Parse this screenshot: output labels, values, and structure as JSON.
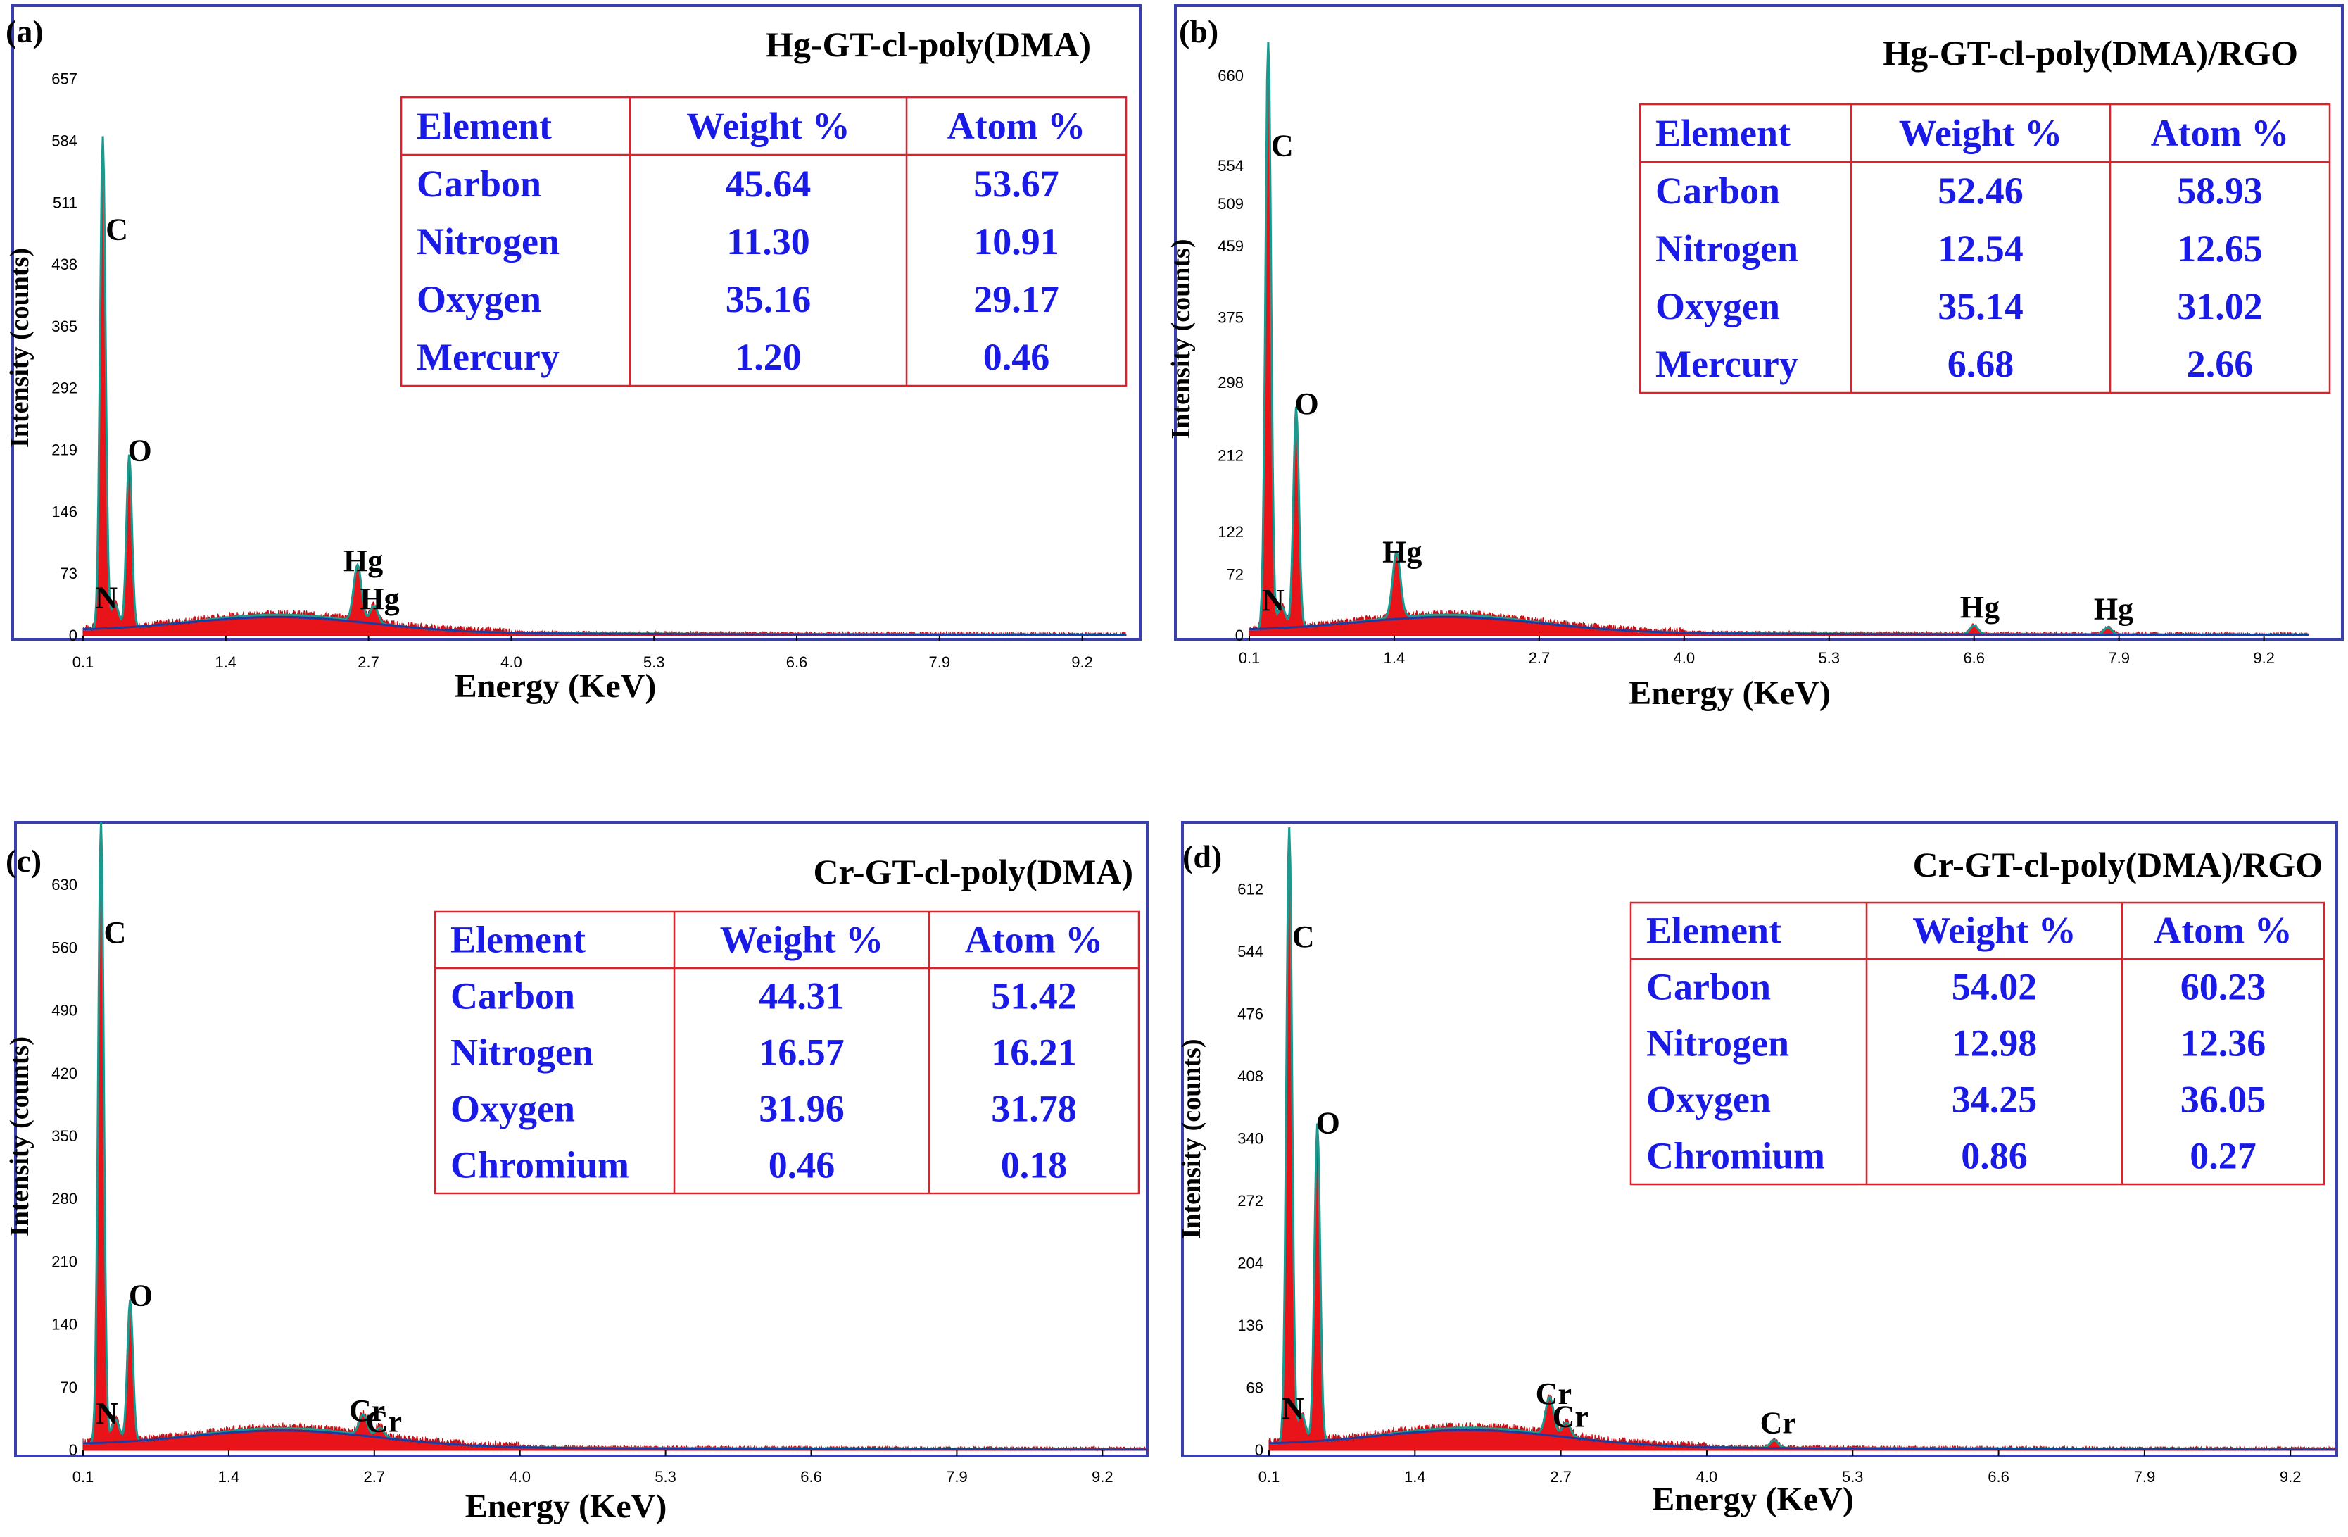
{
  "chart_data": [
    {
      "type": "area",
      "panel": "(a)",
      "title": "Hg-GT-cl-poly(DMA)",
      "xlabel": "Energy (KeV)",
      "ylabel": "Intensity (counts)",
      "xlim": [
        0.1,
        9.6
      ],
      "ylim": [
        0,
        680
      ],
      "xticks": [
        "0.1",
        "1.4",
        "2.7",
        "4.0",
        "5.3",
        "6.6",
        "7.9",
        "9.2"
      ],
      "yticks": [
        "0",
        "73",
        "146",
        "219",
        "292",
        "365",
        "438",
        "511",
        "584",
        "657"
      ],
      "peaks": [
        {
          "label": "C",
          "x": 0.28,
          "y": 570
        },
        {
          "label": "O",
          "x": 0.52,
          "y": 200
        },
        {
          "label": "N",
          "x": 0.39,
          "y": 28
        },
        {
          "label": "Hg",
          "x": 2.6,
          "y": 65
        },
        {
          "label": "Hg",
          "x": 2.75,
          "y": 20
        }
      ],
      "table": {
        "headers": [
          "Element",
          "Weight %",
          "Atom %"
        ],
        "rows": [
          [
            "Carbon",
            "45.64",
            "53.67"
          ],
          [
            "Nitrogen",
            "11.30",
            "10.91"
          ],
          [
            "Oxygen",
            "35.16",
            "29.17"
          ],
          [
            "Mercury",
            "1.20",
            "0.46"
          ]
        ]
      }
    },
    {
      "type": "area",
      "panel": "(b)",
      "title": "Hg-GT-cl-poly(DMA)/RGO",
      "xlabel": "Energy (KeV)",
      "ylabel": "Intensity (counts)",
      "xlim": [
        0.1,
        9.6
      ],
      "ylim": [
        0,
        700
      ],
      "xticks": [
        "0.1",
        "1.4",
        "2.7",
        "4.0",
        "5.3",
        "6.6",
        "7.9",
        "9.2"
      ],
      "yticks": [
        "0",
        "72",
        "122",
        "212",
        "298",
        "375",
        "459",
        "509",
        "554",
        "660"
      ],
      "peaks": [
        {
          "label": "C",
          "x": 0.27,
          "y": 690
        },
        {
          "label": "O",
          "x": 0.52,
          "y": 255
        },
        {
          "label": "N",
          "x": 0.39,
          "y": 25
        },
        {
          "label": "Hg",
          "x": 1.42,
          "y": 75
        },
        {
          "label": "Hg",
          "x": 6.6,
          "y": 10
        },
        {
          "label": "Hg",
          "x": 7.8,
          "y": 8
        }
      ],
      "table": {
        "headers": [
          "Element",
          "Weight %",
          "Atom %"
        ],
        "rows": [
          [
            "Carbon",
            "52.46",
            "58.93"
          ],
          [
            "Nitrogen",
            "12.54",
            "12.65"
          ],
          [
            "Oxygen",
            "35.14",
            "31.02"
          ],
          [
            "Mercury",
            "6.68",
            "2.66"
          ]
        ]
      }
    },
    {
      "type": "area",
      "panel": "(c)",
      "title": "Cr-GT-cl-poly(DMA)",
      "xlabel": "Energy (KeV)",
      "ylabel": "Intensity (counts)",
      "xlim": [
        0.1,
        9.6
      ],
      "ylim": [
        0,
        700
      ],
      "xticks": [
        "0.1",
        "1.4",
        "2.7",
        "4.0",
        "5.3",
        "6.6",
        "7.9",
        "9.2"
      ],
      "yticks": [
        "0",
        "70",
        "140",
        "210",
        "280",
        "350",
        "420",
        "490",
        "560",
        "630"
      ],
      "peaks": [
        {
          "label": "C",
          "x": 0.26,
          "y": 690
        },
        {
          "label": "O",
          "x": 0.52,
          "y": 155
        },
        {
          "label": "N",
          "x": 0.39,
          "y": 25
        },
        {
          "label": "Cr",
          "x": 2.6,
          "y": 22
        },
        {
          "label": "Cr",
          "x": 2.75,
          "y": 10
        }
      ],
      "table": {
        "headers": [
          "Element",
          "Weight %",
          "Atom %"
        ],
        "rows": [
          [
            "Carbon",
            "44.31",
            "51.42"
          ],
          [
            "Nitrogen",
            "16.57",
            "16.21"
          ],
          [
            "Oxygen",
            "31.96",
            "31.78"
          ],
          [
            "Chromium",
            "0.46",
            "0.18"
          ]
        ]
      }
    },
    {
      "type": "area",
      "panel": "(d)",
      "title": "Cr-GT-cl-poly(DMA)/RGO",
      "xlabel": "Energy (KeV)",
      "ylabel": "Intensity (counts)",
      "xlim": [
        0.1,
        9.6
      ],
      "ylim": [
        0,
        680
      ],
      "xticks": [
        "0.1",
        "1.4",
        "2.7",
        "4.0",
        "5.3",
        "6.6",
        "7.9",
        "9.2"
      ],
      "yticks": [
        "0",
        "68",
        "136",
        "204",
        "272",
        "340",
        "408",
        "476",
        "544",
        "612"
      ],
      "peaks": [
        {
          "label": "C",
          "x": 0.28,
          "y": 670
        },
        {
          "label": "O",
          "x": 0.53,
          "y": 340
        },
        {
          "label": "N",
          "x": 0.39,
          "y": 30
        },
        {
          "label": "Cr",
          "x": 2.6,
          "y": 40
        },
        {
          "label": "Cr",
          "x": 2.75,
          "y": 15
        },
        {
          "label": "Cr",
          "x": 4.6,
          "y": 8
        }
      ],
      "table": {
        "headers": [
          "Element",
          "Weight %",
          "Atom %"
        ],
        "rows": [
          [
            "Carbon",
            "54.02",
            "60.23"
          ],
          [
            "Nitrogen",
            "12.98",
            "12.36"
          ],
          [
            "Oxygen",
            "34.25",
            "36.05"
          ],
          [
            "Chromium",
            "0.86",
            "0.27"
          ]
        ]
      }
    }
  ]
}
